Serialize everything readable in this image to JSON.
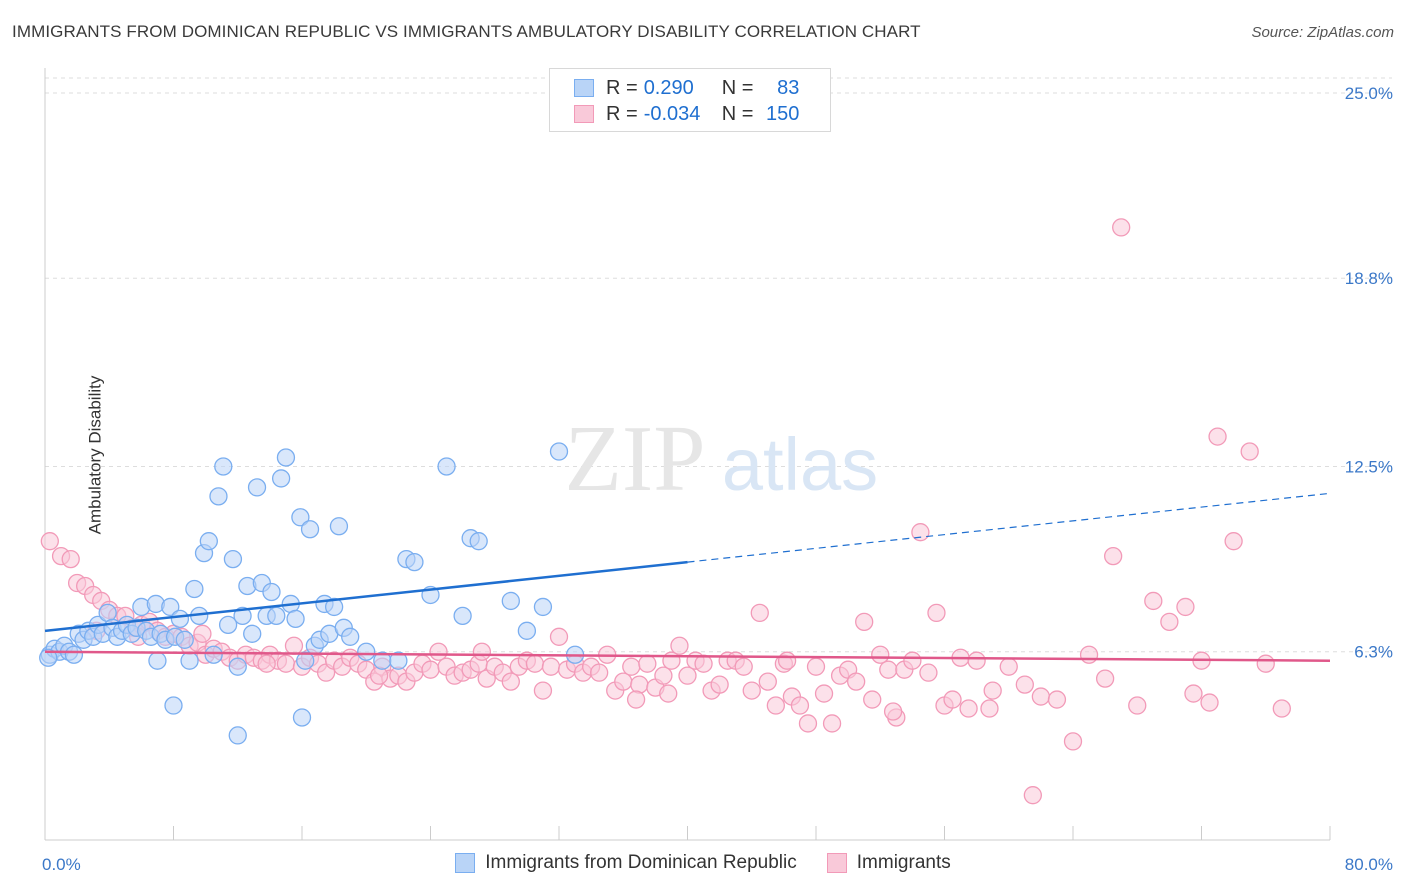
{
  "title": "IMMIGRANTS FROM DOMINICAN REPUBLIC VS IMMIGRANTS AMBULATORY DISABILITY CORRELATION CHART",
  "source": "Source: ZipAtlas.com",
  "watermark": {
    "zip": "ZIP",
    "atlas": "atlas"
  },
  "legend": {
    "rows": [
      {
        "r_label": "R =",
        "r_value": "0.290",
        "n_label": "N =",
        "n_value": "83",
        "color": "#7aaef0",
        "fill": "#b9d4f7"
      },
      {
        "r_label": "R =",
        "r_value": "-0.034",
        "n_label": "N =",
        "n_value": "150",
        "color": "#f29ab8",
        "fill": "#f9c9d9"
      }
    ]
  },
  "bottom_legend": [
    {
      "label": "Immigrants from Dominican Republic",
      "color": "#7aaef0",
      "fill": "#b9d4f7"
    },
    {
      "label": "Immigrants",
      "color": "#f29ab8",
      "fill": "#f9c9d9"
    }
  ],
  "chart_data": {
    "type": "scatter",
    "title": "IMMIGRANTS FROM DOMINICAN REPUBLIC VS IMMIGRANTS AMBULATORY DISABILITY CORRELATION CHART",
    "xlabel": "",
    "ylabel": "Ambulatory Disability",
    "xlim": [
      0,
      80
    ],
    "ylim": [
      0,
      25.5
    ],
    "x_tick_labels": [
      "0.0%",
      "80.0%"
    ],
    "y_ticks": [
      6.3,
      12.5,
      18.8,
      25.0
    ],
    "y_tick_labels": [
      "6.3%",
      "12.5%",
      "18.8%",
      "25.0%"
    ],
    "grid": true,
    "series": [
      {
        "name": "Immigrants from Dominican Republic",
        "color": "#7aaef0",
        "fill": "#b9d4f7",
        "trend": {
          "x": [
            0,
            40
          ],
          "y": [
            7.0,
            9.3
          ],
          "dashed_to": [
            80,
            11.6
          ],
          "color": "#1f6fd0"
        },
        "points": [
          [
            0.3,
            6.2
          ],
          [
            0.6,
            6.4
          ],
          [
            0.9,
            6.3
          ],
          [
            1.2,
            6.5
          ],
          [
            1.5,
            6.3
          ],
          [
            1.8,
            6.2
          ],
          [
            2.1,
            6.9
          ],
          [
            2.4,
            6.7
          ],
          [
            2.7,
            7.0
          ],
          [
            3.0,
            6.8
          ],
          [
            3.3,
            7.2
          ],
          [
            3.6,
            6.9
          ],
          [
            3.9,
            7.6
          ],
          [
            4.2,
            7.1
          ],
          [
            4.5,
            6.8
          ],
          [
            4.8,
            7.0
          ],
          [
            5.1,
            7.2
          ],
          [
            5.4,
            6.9
          ],
          [
            5.7,
            7.1
          ],
          [
            6.0,
            7.8
          ],
          [
            6.3,
            7.0
          ],
          [
            6.6,
            6.8
          ],
          [
            6.9,
            7.9
          ],
          [
            7.2,
            6.9
          ],
          [
            7.5,
            6.7
          ],
          [
            7.8,
            7.8
          ],
          [
            8.1,
            6.8
          ],
          [
            8.4,
            7.4
          ],
          [
            8.7,
            6.7
          ],
          [
            9.0,
            6.0
          ],
          [
            9.3,
            8.4
          ],
          [
            9.6,
            7.5
          ],
          [
            9.9,
            9.6
          ],
          [
            10.2,
            10.0
          ],
          [
            10.5,
            6.2
          ],
          [
            10.8,
            11.5
          ],
          [
            11.1,
            12.5
          ],
          [
            11.4,
            7.2
          ],
          [
            11.7,
            9.4
          ],
          [
            12.0,
            5.8
          ],
          [
            12.3,
            7.5
          ],
          [
            12.6,
            8.5
          ],
          [
            12.9,
            6.9
          ],
          [
            13.2,
            11.8
          ],
          [
            13.5,
            8.6
          ],
          [
            13.8,
            7.5
          ],
          [
            14.1,
            8.3
          ],
          [
            14.4,
            7.5
          ],
          [
            14.7,
            12.1
          ],
          [
            15.0,
            12.8
          ],
          [
            15.3,
            7.9
          ],
          [
            15.6,
            7.4
          ],
          [
            15.9,
            10.8
          ],
          [
            16.2,
            6.0
          ],
          [
            16.5,
            10.4
          ],
          [
            16.8,
            6.5
          ],
          [
            17.1,
            6.7
          ],
          [
            17.4,
            7.9
          ],
          [
            17.7,
            6.9
          ],
          [
            18.0,
            7.8
          ],
          [
            18.3,
            10.5
          ],
          [
            18.6,
            7.1
          ],
          [
            19.0,
            6.8
          ],
          [
            20.0,
            6.3
          ],
          [
            21.0,
            6.0
          ],
          [
            22.0,
            6.0
          ],
          [
            22.5,
            9.4
          ],
          [
            23.0,
            9.3
          ],
          [
            24.0,
            8.2
          ],
          [
            25.0,
            12.5
          ],
          [
            26.0,
            7.5
          ],
          [
            26.5,
            10.1
          ],
          [
            27.0,
            10.0
          ],
          [
            29.0,
            8.0
          ],
          [
            30.0,
            7.0
          ],
          [
            31.0,
            7.8
          ],
          [
            32.0,
            13.0
          ],
          [
            33.0,
            6.2
          ],
          [
            8.0,
            4.5
          ],
          [
            12.0,
            3.5
          ],
          [
            16.0,
            4.1
          ],
          [
            7.0,
            6.0
          ],
          [
            0.2,
            6.1
          ]
        ]
      },
      {
        "name": "Immigrants",
        "color": "#f29ab8",
        "fill": "#f9c9d9",
        "trend": {
          "x": [
            0,
            80
          ],
          "y": [
            6.3,
            6.0
          ],
          "color": "#e0588a"
        },
        "points": [
          [
            0.3,
            10.0
          ],
          [
            1.0,
            9.5
          ],
          [
            2.0,
            8.6
          ],
          [
            2.5,
            8.5
          ],
          [
            3.0,
            8.2
          ],
          [
            3.5,
            8.0
          ],
          [
            4.0,
            7.7
          ],
          [
            4.5,
            7.5
          ],
          [
            5.0,
            7.5
          ],
          [
            5.5,
            7.1
          ],
          [
            6.0,
            7.2
          ],
          [
            6.5,
            7.3
          ],
          [
            7.0,
            7.0
          ],
          [
            7.5,
            6.8
          ],
          [
            8.0,
            6.9
          ],
          [
            8.5,
            6.8
          ],
          [
            9.0,
            6.5
          ],
          [
            9.5,
            6.6
          ],
          [
            10.0,
            6.2
          ],
          [
            10.5,
            6.4
          ],
          [
            11.0,
            6.3
          ],
          [
            11.5,
            6.1
          ],
          [
            12.0,
            6.0
          ],
          [
            12.5,
            6.2
          ],
          [
            13.0,
            6.1
          ],
          [
            13.5,
            6.0
          ],
          [
            14.0,
            6.2
          ],
          [
            14.5,
            6.0
          ],
          [
            15.0,
            5.9
          ],
          [
            15.5,
            6.5
          ],
          [
            16.0,
            5.8
          ],
          [
            16.5,
            6.1
          ],
          [
            17.0,
            5.9
          ],
          [
            17.5,
            5.6
          ],
          [
            18.0,
            6.0
          ],
          [
            18.5,
            5.8
          ],
          [
            19.0,
            6.1
          ],
          [
            19.5,
            5.9
          ],
          [
            20.0,
            5.7
          ],
          [
            20.5,
            5.3
          ],
          [
            21.0,
            5.8
          ],
          [
            21.5,
            5.4
          ],
          [
            22.0,
            5.5
          ],
          [
            22.5,
            5.3
          ],
          [
            23.0,
            5.6
          ],
          [
            23.5,
            5.9
          ],
          [
            24.0,
            5.7
          ],
          [
            24.5,
            6.3
          ],
          [
            25.0,
            5.8
          ],
          [
            25.5,
            5.5
          ],
          [
            26.0,
            5.6
          ],
          [
            26.5,
            5.7
          ],
          [
            27.0,
            5.9
          ],
          [
            27.5,
            5.4
          ],
          [
            28.0,
            5.8
          ],
          [
            28.5,
            5.6
          ],
          [
            29.0,
            5.3
          ],
          [
            29.5,
            5.8
          ],
          [
            30.0,
            6.0
          ],
          [
            30.5,
            5.9
          ],
          [
            31.0,
            5.0
          ],
          [
            31.5,
            5.8
          ],
          [
            32.0,
            6.8
          ],
          [
            32.5,
            5.7
          ],
          [
            33.0,
            5.9
          ],
          [
            33.5,
            5.6
          ],
          [
            34.0,
            5.8
          ],
          [
            34.5,
            5.6
          ],
          [
            35.0,
            6.2
          ],
          [
            35.5,
            5.0
          ],
          [
            36.0,
            5.3
          ],
          [
            36.5,
            5.8
          ],
          [
            37.0,
            5.2
          ],
          [
            37.5,
            5.9
          ],
          [
            38.0,
            5.1
          ],
          [
            38.5,
            5.5
          ],
          [
            39.0,
            6.0
          ],
          [
            39.5,
            6.5
          ],
          [
            40.0,
            5.5
          ],
          [
            40.5,
            6.0
          ],
          [
            41.0,
            5.9
          ],
          [
            41.5,
            5.0
          ],
          [
            42.0,
            5.2
          ],
          [
            42.5,
            6.0
          ],
          [
            43.0,
            6.0
          ],
          [
            43.5,
            5.8
          ],
          [
            44.0,
            5.0
          ],
          [
            44.5,
            7.6
          ],
          [
            45.0,
            5.3
          ],
          [
            45.5,
            4.5
          ],
          [
            46.0,
            5.9
          ],
          [
            46.5,
            4.8
          ],
          [
            47.0,
            4.5
          ],
          [
            47.5,
            3.9
          ],
          [
            48.0,
            5.8
          ],
          [
            48.5,
            4.9
          ],
          [
            49.0,
            3.9
          ],
          [
            49.5,
            5.5
          ],
          [
            50.0,
            5.7
          ],
          [
            50.5,
            5.3
          ],
          [
            51.0,
            7.3
          ],
          [
            51.5,
            4.7
          ],
          [
            52.0,
            6.2
          ],
          [
            52.5,
            5.7
          ],
          [
            53.0,
            4.1
          ],
          [
            53.5,
            5.7
          ],
          [
            54.0,
            6.0
          ],
          [
            54.5,
            10.3
          ],
          [
            55.0,
            5.6
          ],
          [
            55.5,
            7.6
          ],
          [
            56.0,
            4.5
          ],
          [
            56.5,
            4.7
          ],
          [
            57.0,
            6.1
          ],
          [
            57.5,
            4.4
          ],
          [
            58.0,
            6.0
          ],
          [
            59.0,
            5.0
          ],
          [
            60.0,
            5.8
          ],
          [
            61.0,
            5.2
          ],
          [
            62.0,
            4.8
          ],
          [
            63.0,
            4.7
          ],
          [
            64.0,
            3.3
          ],
          [
            65.0,
            6.2
          ],
          [
            66.0,
            5.4
          ],
          [
            66.5,
            9.5
          ],
          [
            67.0,
            20.5
          ],
          [
            68.0,
            4.5
          ],
          [
            69.0,
            8.0
          ],
          [
            70.0,
            7.3
          ],
          [
            71.0,
            7.8
          ],
          [
            72.0,
            6.0
          ],
          [
            73.0,
            13.5
          ],
          [
            74.0,
            10.0
          ],
          [
            75.0,
            13.0
          ],
          [
            76.0,
            5.9
          ],
          [
            77.0,
            4.4
          ],
          [
            72.5,
            4.6
          ],
          [
            61.5,
            1.5
          ],
          [
            52.8,
            4.3
          ],
          [
            38.8,
            4.9
          ],
          [
            27.2,
            6.3
          ],
          [
            20.8,
            5.5
          ],
          [
            13.8,
            5.9
          ],
          [
            9.8,
            6.9
          ],
          [
            5.8,
            6.8
          ],
          [
            3.2,
            7.0
          ],
          [
            1.6,
            9.4
          ],
          [
            58.8,
            4.4
          ],
          [
            71.5,
            4.9
          ],
          [
            46.2,
            6.0
          ],
          [
            36.8,
            4.7
          ]
        ]
      }
    ]
  }
}
